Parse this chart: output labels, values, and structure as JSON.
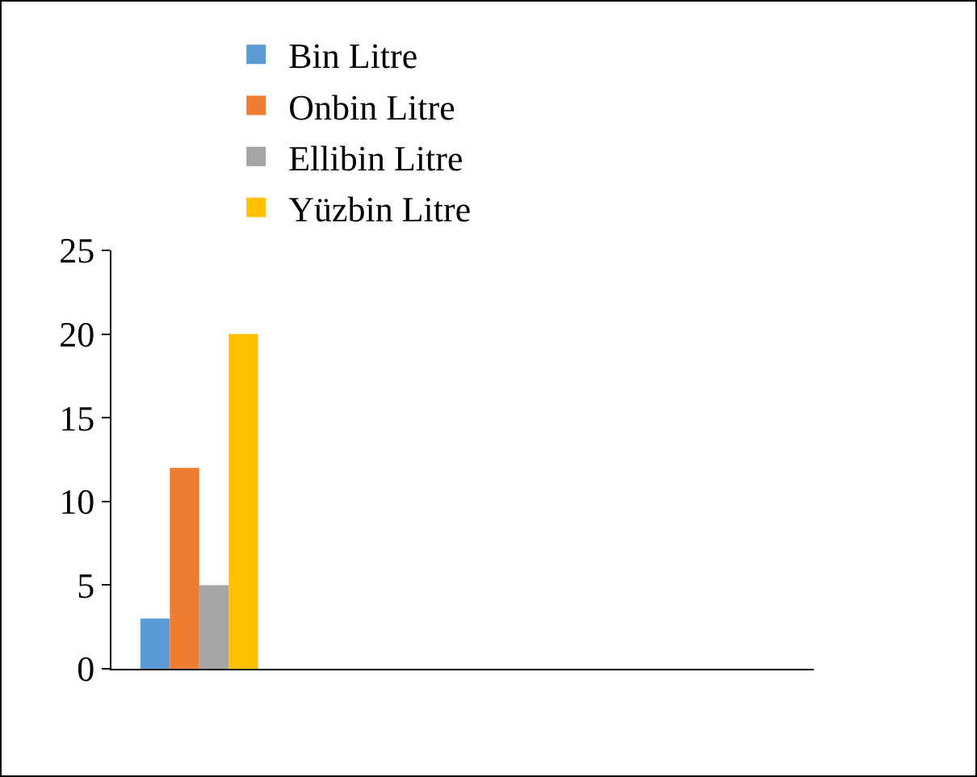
{
  "chart_data": {
    "type": "bar",
    "categories": [
      null,
      null,
      null,
      null
    ],
    "series": [
      {
        "name": "Bin Litre",
        "color": "#5b9bd5",
        "values": [
          3,
          null,
          null,
          null
        ]
      },
      {
        "name": "Onbin Litre",
        "color": "#ed7d31",
        "values": [
          12,
          null,
          null,
          null
        ]
      },
      {
        "name": "Ellibin Litre",
        "color": "#a5a5a5",
        "values": [
          5,
          null,
          null,
          null
        ]
      },
      {
        "name": "Yüzbin Litre",
        "color": "#ffc000",
        "values": [
          20,
          null,
          null,
          null
        ]
      }
    ],
    "ylim": [
      0,
      25
    ],
    "yticks": [
      0,
      5,
      10,
      15,
      20,
      25
    ],
    "grid": false,
    "legend": "top"
  }
}
